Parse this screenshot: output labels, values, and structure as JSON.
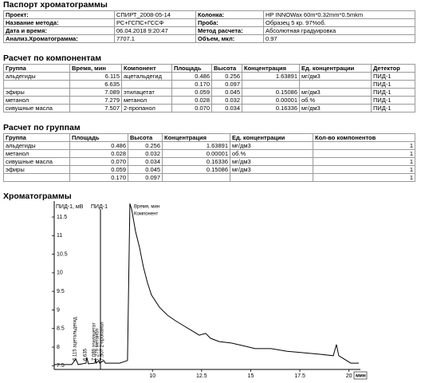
{
  "passport": {
    "title": "Паспорт хроматограммы",
    "rows": [
      [
        "Проект:",
        "СПИРТ_2008-05-14",
        "Колонка:",
        "HP INNOWax 60m*0.32mm*0.5mkm"
      ],
      [
        "Название метода:",
        "РС+ГСПС+ГССФ",
        "Проба:",
        "Образец 5 кр. 97%об."
      ],
      [
        "Дата и время:",
        "06.04.2018 9:20:47",
        "Метод расчета:",
        "Абсолютная градуировка"
      ],
      [
        "Анализ.Хроматограмма:",
        "7707.1",
        "Объем, мкл:",
        "0.97"
      ]
    ]
  },
  "components": {
    "title": "Расчет по компонентам",
    "header": [
      "Группа",
      "Время, мин",
      "Компонент",
      "Площадь",
      "Высота",
      "Концентрация",
      "Ед. концентрации",
      "Детектор"
    ],
    "rows": [
      [
        "альдегиды",
        "6.115",
        "ацетальдегид",
        "0.486",
        "0.256",
        "1.63891",
        "мг/дм3",
        "ПИД-1"
      ],
      [
        null,
        "6.635",
        null,
        "0.170",
        "0.097",
        null,
        null,
        "ПИД-1"
      ],
      [
        "эфиры",
        "7.089",
        "этилацетат",
        "0.059",
        "0.045",
        "0.15086",
        "мг/дм3",
        "ПИД-1"
      ],
      [
        "метанол",
        "7.279",
        "метанол",
        "0.028",
        "0.032",
        "0.00001",
        "об.%",
        "ПИД-1"
      ],
      [
        "сивушные масла",
        "7.507",
        "2-пропанол",
        "0.070",
        "0.034",
        "0.16336",
        "мг/дм3",
        "ПИД-1"
      ]
    ]
  },
  "groups": {
    "title": "Расчет по группам",
    "header": [
      "Группа",
      "Площадь",
      "Высота",
      "Концентрация",
      "Ед. концентрации",
      "Кол-во компонентов"
    ],
    "rows": [
      [
        "альдегиды",
        "0.486",
        "0.256",
        "1.63891",
        "мг/дм3",
        "1"
      ],
      [
        "метанол",
        "0.028",
        "0.032",
        "0.00001",
        "об.%",
        "1"
      ],
      [
        "сивушные масла",
        "0.070",
        "0.034",
        "0.16336",
        "мг/дм3",
        "1"
      ],
      [
        "эфиры",
        "0.059",
        "0.045",
        "0.15086",
        "мг/дм3",
        "1"
      ],
      [
        null,
        "0.170",
        "0.097",
        null,
        null,
        "1"
      ]
    ]
  },
  "chart_data": {
    "type": "line",
    "title": "Хроматограммы",
    "y_label": "ПИД-1, мВ",
    "detector_label": "ПИД-1",
    "legend_labels": [
      "Время, мин",
      "Компонент"
    ],
    "x_unit": "мин",
    "color": "#000000",
    "xlim": [
      5,
      20.5
    ],
    "xticks": [
      10,
      12.5,
      15,
      17.5,
      20
    ],
    "ylim": [
      7.4,
      11.8
    ],
    "yticks": [
      11.5,
      11,
      10.5,
      10,
      9.5,
      9,
      8.5,
      8,
      7.5
    ],
    "x": [
      5.0,
      5.89,
      6.1,
      6.22,
      6.62,
      6.66,
      6.74,
      7.07,
      7.1,
      7.14,
      7.27,
      7.31,
      7.52,
      7.6,
      8.33,
      8.73,
      8.85,
      8.94,
      9.14,
      9.34,
      9.54,
      9.75,
      9.95,
      10.36,
      10.76,
      11.17,
      11.57,
      11.98,
      12.38,
      12.71,
      12.95,
      13.4,
      14.01,
      14.61,
      15.22,
      16.03,
      16.85,
      17.66,
      18.47,
      19.2,
      19.36,
      19.48,
      20.09,
      20.5
    ],
    "values": [
      7.53,
      7.53,
      7.68,
      7.53,
      7.57,
      7.72,
      7.55,
      7.57,
      7.68,
      7.57,
      7.64,
      7.57,
      7.64,
      7.57,
      7.57,
      7.64,
      11.86,
      11.71,
      11.11,
      10.68,
      10.15,
      9.72,
      9.4,
      9.07,
      8.86,
      8.71,
      8.58,
      8.45,
      8.32,
      8.37,
      8.24,
      8.15,
      8.11,
      8.04,
      7.96,
      7.96,
      7.89,
      7.85,
      7.81,
      7.77,
      8.07,
      7.77,
      7.57,
      7.57
    ],
    "peak_labels": [
      "6.115 ацетальдегид",
      "6.635",
      "7.089 этилацетат",
      "7.279 метанол",
      "7.507 2-пропанол"
    ]
  }
}
